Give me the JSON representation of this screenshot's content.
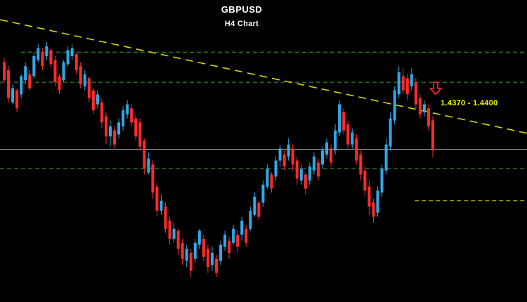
{
  "chart_data": {
    "type": "candlestick",
    "title": "GBPUSD",
    "subtitle": "H4 Chart",
    "timeframe": "H4",
    "grid": false,
    "axes_visible": false,
    "legend": "none",
    "ylim": [
      1.38975,
      1.465
    ],
    "colors": {
      "background": "#000000",
      "text": "#ffffff",
      "bull": "#2fa9e8",
      "bear": "#ff2b2b",
      "level_dashed": "#3c9f3c",
      "level_solid": "#aab4be",
      "trendline": "#d8d800",
      "short_level": "#c8c800"
    },
    "levels": [
      {
        "price": 1.452,
        "style": "dashed",
        "color_key": "level_dashed",
        "x_start_frac": 0.04,
        "x_end_frac": 1.0
      },
      {
        "price": 1.4445,
        "style": "dashed",
        "color_key": "level_dashed",
        "x_start_frac": 0.0,
        "x_end_frac": 1.0
      },
      {
        "price": 1.4278,
        "style": "solid",
        "color_key": "level_solid",
        "x_start_frac": 0.0,
        "x_end_frac": 1.0
      },
      {
        "price": 1.423,
        "style": "dashed",
        "color_key": "level_dashed",
        "x_start_frac": 0.0,
        "x_end_frac": 1.0
      },
      {
        "price": 1.415,
        "style": "dashed",
        "color_key": "short_level",
        "x_start_frac": 0.787,
        "x_end_frac": 0.995
      }
    ],
    "trendline": {
      "x1_frac": 0.0,
      "price1": 1.4601,
      "x2_frac": 1.0,
      "price2": 1.4318,
      "style": "dashed"
    },
    "annotations": {
      "arrow": {
        "shape": "hollow-down-arrow",
        "color": "#ff2020"
      },
      "zone_text": {
        "text": "1.4370 - 1.4400",
        "color": "#ffff00"
      }
    },
    "candles_ohlc": [
      [
        1.4495,
        1.4505,
        1.4445,
        1.445
      ],
      [
        1.4475,
        1.4485,
        1.4395,
        1.4405
      ],
      [
        1.4395,
        1.444,
        1.439,
        1.443
      ],
      [
        1.4425,
        1.443,
        1.437,
        1.438
      ],
      [
        1.4415,
        1.4465,
        1.4405,
        1.446
      ],
      [
        1.445,
        1.4495,
        1.444,
        1.4485
      ],
      [
        1.4465,
        1.4475,
        1.4425,
        1.443
      ],
      [
        1.446,
        1.452,
        1.4455,
        1.451
      ],
      [
        1.45,
        1.454,
        1.4495,
        1.453
      ],
      [
        1.452,
        1.453,
        1.4475,
        1.4485
      ],
      [
        1.451,
        1.4545,
        1.45,
        1.4535
      ],
      [
        1.4525,
        1.453,
        1.448,
        1.449
      ],
      [
        1.45,
        1.451,
        1.4435,
        1.4445
      ],
      [
        1.446,
        1.4465,
        1.4415,
        1.4425
      ],
      [
        1.445,
        1.45,
        1.4445,
        1.4495
      ],
      [
        1.449,
        1.4535,
        1.4485,
        1.4525
      ],
      [
        1.451,
        1.454,
        1.45,
        1.453
      ],
      [
        1.4515,
        1.452,
        1.4465,
        1.4475
      ],
      [
        1.4485,
        1.4495,
        1.443,
        1.444
      ],
      [
        1.4435,
        1.4475,
        1.4425,
        1.4465
      ],
      [
        1.4455,
        1.446,
        1.4395,
        1.4405
      ],
      [
        1.4425,
        1.443,
        1.4365,
        1.4375
      ],
      [
        1.439,
        1.4425,
        1.438,
        1.4415
      ],
      [
        1.4395,
        1.4405,
        1.433,
        1.4345
      ],
      [
        1.436,
        1.437,
        1.429,
        1.431
      ],
      [
        1.431,
        1.435,
        1.4285,
        1.4335
      ],
      [
        1.4325,
        1.4335,
        1.428,
        1.429
      ],
      [
        1.4315,
        1.4355,
        1.4305,
        1.4345
      ],
      [
        1.4335,
        1.4385,
        1.4325,
        1.4375
      ],
      [
        1.4365,
        1.44,
        1.4355,
        1.439
      ],
      [
        1.438,
        1.439,
        1.4335,
        1.4345
      ],
      [
        1.4355,
        1.4365,
        1.43,
        1.431
      ],
      [
        1.4345,
        1.4355,
        1.4275,
        1.4285
      ],
      [
        1.43,
        1.4305,
        1.4215,
        1.423
      ],
      [
        1.422,
        1.427,
        1.4215,
        1.4255
      ],
      [
        1.424,
        1.425,
        1.4155,
        1.417
      ],
      [
        1.4185,
        1.4195,
        1.411,
        1.4125
      ],
      [
        1.4125,
        1.4165,
        1.4115,
        1.415
      ],
      [
        1.4135,
        1.4145,
        1.407,
        1.408
      ],
      [
        1.41,
        1.411,
        1.404,
        1.4055
      ],
      [
        1.4055,
        1.4095,
        1.4045,
        1.408
      ],
      [
        1.4075,
        1.408,
        1.4015,
        1.403
      ],
      [
        1.4045,
        1.4055,
        1.399,
        1.4005
      ],
      [
        1.4,
        1.404,
        1.3985,
        1.403
      ],
      [
        1.402,
        1.403,
        1.396,
        1.3975
      ],
      [
        1.4005,
        1.4055,
        1.3995,
        1.4045
      ],
      [
        1.404,
        1.408,
        1.403,
        1.4075
      ],
      [
        1.4055,
        1.4065,
        1.4,
        1.401
      ],
      [
        1.403,
        1.404,
        1.397,
        1.3985
      ],
      [
        1.399,
        1.4035,
        1.3975,
        1.402
      ],
      [
        1.4005,
        1.4015,
        1.396,
        1.397
      ],
      [
        1.4,
        1.405,
        1.399,
        1.404
      ],
      [
        1.4035,
        1.4075,
        1.4025,
        1.4065
      ],
      [
        1.405,
        1.406,
        1.4005,
        1.402
      ],
      [
        1.4045,
        1.409,
        1.404,
        1.408
      ],
      [
        1.4065,
        1.4075,
        1.402,
        1.4035
      ],
      [
        1.4065,
        1.411,
        1.405,
        1.41
      ],
      [
        1.408,
        1.409,
        1.4035,
        1.4045
      ],
      [
        1.408,
        1.4135,
        1.4075,
        1.4125
      ],
      [
        1.4115,
        1.417,
        1.411,
        1.416
      ],
      [
        1.4145,
        1.415,
        1.41,
        1.411
      ],
      [
        1.4145,
        1.42,
        1.4135,
        1.419
      ],
      [
        1.4185,
        1.424,
        1.418,
        1.423
      ],
      [
        1.4215,
        1.422,
        1.417,
        1.418
      ],
      [
        1.421,
        1.426,
        1.42,
        1.425
      ],
      [
        1.425,
        1.429,
        1.4235,
        1.428
      ],
      [
        1.4265,
        1.4275,
        1.4225,
        1.4235
      ],
      [
        1.426,
        1.4305,
        1.425,
        1.429
      ],
      [
        1.428,
        1.429,
        1.4225,
        1.424
      ],
      [
        1.425,
        1.426,
        1.419,
        1.4205
      ],
      [
        1.42,
        1.424,
        1.419,
        1.423
      ],
      [
        1.4215,
        1.422,
        1.4165,
        1.418
      ],
      [
        1.42,
        1.4245,
        1.419,
        1.4235
      ],
      [
        1.4225,
        1.427,
        1.4215,
        1.426
      ],
      [
        1.4245,
        1.4255,
        1.42,
        1.421
      ],
      [
        1.424,
        1.4285,
        1.423,
        1.4275
      ],
      [
        1.4265,
        1.4305,
        1.4255,
        1.4295
      ],
      [
        1.428,
        1.429,
        1.4235,
        1.4245
      ],
      [
        1.4275,
        1.434,
        1.4265,
        1.4325
      ],
      [
        1.432,
        1.44,
        1.431,
        1.439
      ],
      [
        1.437,
        1.438,
        1.4315,
        1.4325
      ],
      [
        1.434,
        1.435,
        1.428,
        1.429
      ],
      [
        1.429,
        1.433,
        1.428,
        1.432
      ],
      [
        1.4305,
        1.4315,
        1.424,
        1.425
      ],
      [
        1.4265,
        1.4275,
        1.42,
        1.4215
      ],
      [
        1.4225,
        1.4235,
        1.416,
        1.4175
      ],
      [
        1.4185,
        1.42,
        1.4115,
        1.4135
      ],
      [
        1.4145,
        1.4155,
        1.4095,
        1.411
      ],
      [
        1.412,
        1.4185,
        1.411,
        1.4175
      ],
      [
        1.417,
        1.424,
        1.416,
        1.423
      ],
      [
        1.4225,
        1.4305,
        1.4215,
        1.429
      ],
      [
        1.4285,
        1.437,
        1.4275,
        1.4355
      ],
      [
        1.435,
        1.4435,
        1.434,
        1.4425
      ],
      [
        1.4415,
        1.4485,
        1.4405,
        1.447
      ],
      [
        1.446,
        1.448,
        1.4415,
        1.4425
      ],
      [
        1.4455,
        1.4465,
        1.44,
        1.4415
      ],
      [
        1.4435,
        1.448,
        1.4425,
        1.4465
      ],
      [
        1.4445,
        1.4455,
        1.438,
        1.439
      ],
      [
        1.4405,
        1.4415,
        1.4355,
        1.4365
      ],
      [
        1.437,
        1.44,
        1.436,
        1.439
      ],
      [
        1.438,
        1.439,
        1.4325,
        1.4335
      ],
      [
        1.435,
        1.436,
        1.4258,
        1.4275
      ]
    ]
  }
}
